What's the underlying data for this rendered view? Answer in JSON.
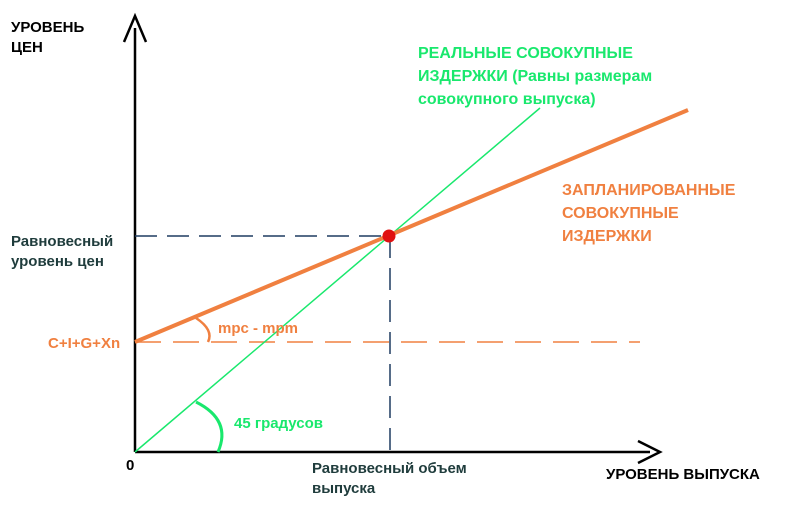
{
  "labels": {
    "y_axis": "УРОВЕНЬ\nЦЕН",
    "x_axis": "УРОВЕНЬ ВЫПУСКА",
    "origin": "0",
    "real_costs": "РЕАЛЬНЫЕ СОВОКУПНЫЕ\nИЗДЕРЖКИ (Равны размерам\nсовокупного выпуска)",
    "planned_costs": "ЗАПЛАНИРОВАННЫЕ\nСОВОКУПНЫЕ\nИЗДЕРЖКИ",
    "equilibrium_price": "Равновесный\nуровень цен",
    "intercept": "C+I+G+Xn",
    "slope_label": "mpc - mpm",
    "angle_label": "45 градусов",
    "equilibrium_output": "Равновесный объем\nвыпуска"
  },
  "colors": {
    "axis": "#000000",
    "real_line": "#19e86d",
    "planned_line": "#f08040",
    "equilibrium_point": "#e01010",
    "guide": "#1f3c60",
    "text_dark": "#1f3c3c"
  }
}
